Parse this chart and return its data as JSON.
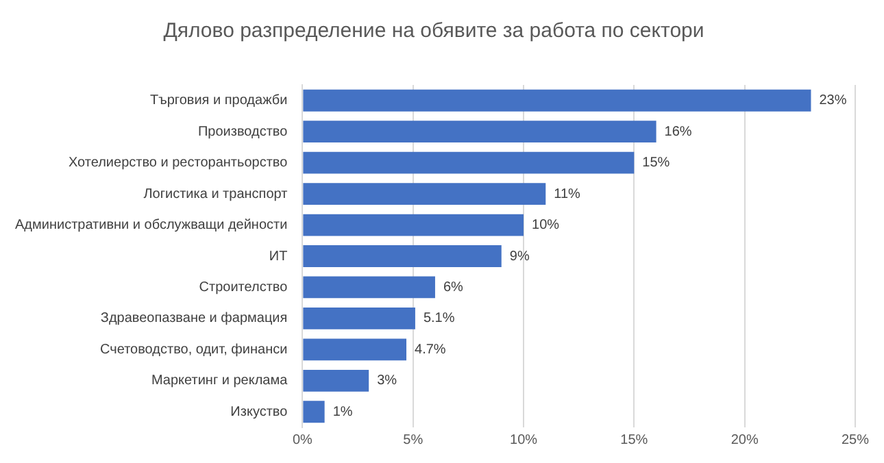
{
  "chart_data": {
    "type": "bar",
    "orientation": "horizontal",
    "title": "Дялово разпределение на обявите за работа по сектори",
    "categories": [
      "Търговия и продажби",
      "Производство",
      "Хотелиерство и ресторантьорство",
      "Логистика и транспорт",
      "Административни и обслужващи дейности",
      "ИТ",
      "Строителство",
      "Здравеопазване и фармация",
      "Счетоводство, одит, финанси",
      "Маркетинг и реклама",
      "Изкуство"
    ],
    "values": [
      23,
      16,
      15,
      11,
      10,
      9,
      6,
      5.1,
      4.7,
      3,
      1
    ],
    "value_labels": [
      "23%",
      "16%",
      "15%",
      "11%",
      "10%",
      "9%",
      "6%",
      "5.1%",
      "4.7%",
      "3%",
      "1%"
    ],
    "color": "#4472c4",
    "xlim": [
      0,
      25
    ],
    "xticks": [
      {
        "value": 0,
        "label": "0%"
      },
      {
        "value": 5,
        "label": "5%"
      },
      {
        "value": 10,
        "label": "10%"
      },
      {
        "value": 15,
        "label": "15%"
      },
      {
        "value": 20,
        "label": "20%"
      },
      {
        "value": 25,
        "label": "25%"
      }
    ],
    "grid": "x",
    "legend": false
  }
}
